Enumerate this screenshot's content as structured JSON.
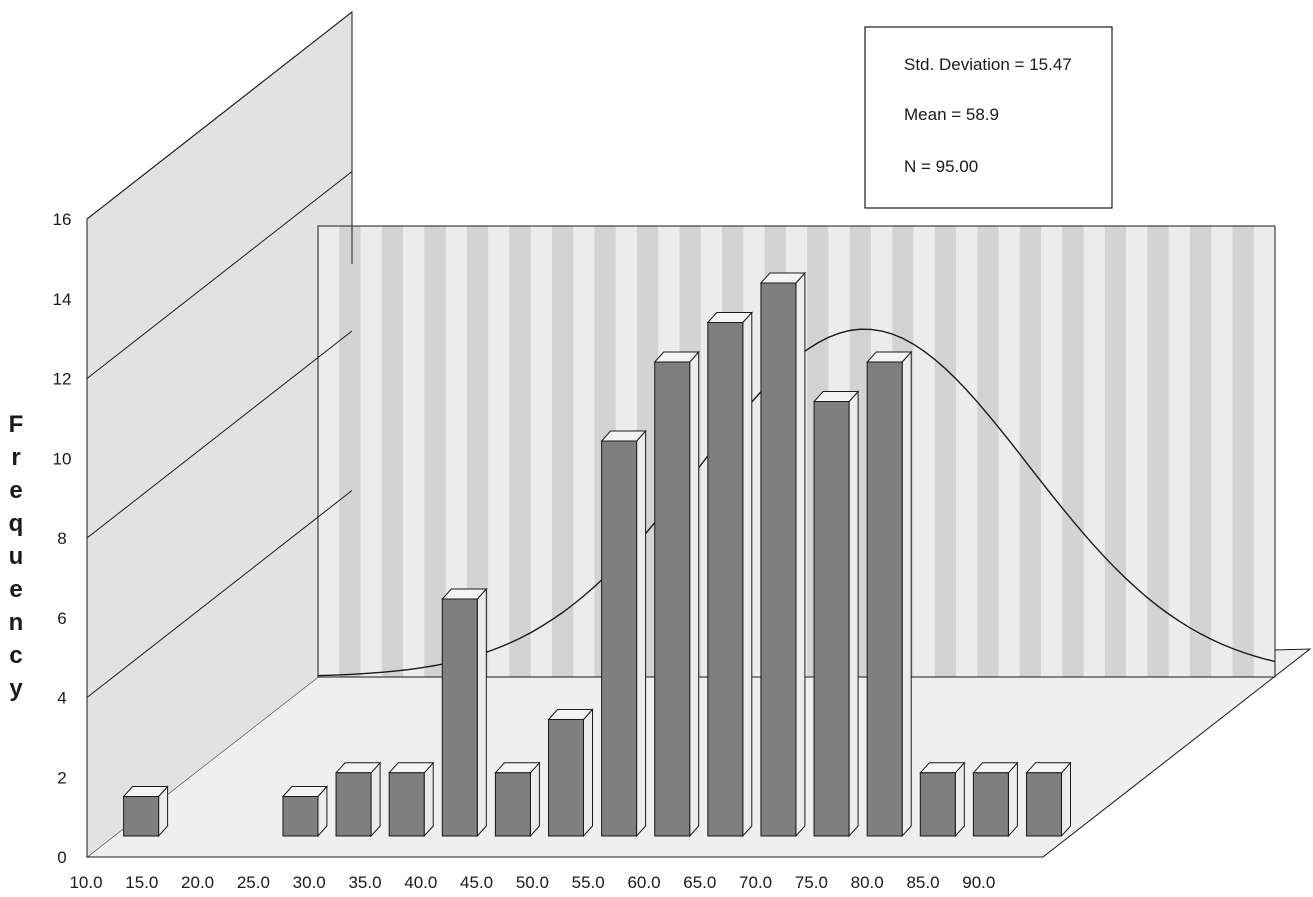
{
  "chart_data": {
    "type": "bar",
    "style": "3d-histogram-with-normal-curve",
    "title": "",
    "xlabel": "",
    "ylabel": "Frequency",
    "ylim": [
      0,
      16
    ],
    "yticks": [
      0,
      2,
      4,
      6,
      8,
      10,
      12,
      14,
      16
    ],
    "xtick_labels": [
      "10.0",
      "15.0",
      "20.0",
      "25.0",
      "30.0",
      "35.0",
      "40.0",
      "45.0",
      "50.0",
      "55.0",
      "60.0",
      "65.0",
      "70.0",
      "75.0",
      "80.0",
      "85.0",
      "90.0"
    ],
    "bars": [
      {
        "x": 12.5,
        "value": 1
      },
      {
        "x": 27.5,
        "value": 1
      },
      {
        "x": 32.5,
        "value": 1.6
      },
      {
        "x": 37.5,
        "value": 1.6
      },
      {
        "x": 42.5,
        "value": 6
      },
      {
        "x": 47.5,
        "value": 1.6
      },
      {
        "x": 52.5,
        "value": 2.95
      },
      {
        "x": 57.5,
        "value": 10
      },
      {
        "x": 62.5,
        "value": 12
      },
      {
        "x": 67.5,
        "value": 13
      },
      {
        "x": 72.5,
        "value": 14
      },
      {
        "x": 77.5,
        "value": 11
      },
      {
        "x": 82.5,
        "value": 12
      },
      {
        "x": 87.5,
        "value": 1.6
      },
      {
        "x": 92.5,
        "value": 1.6
      },
      {
        "x": 97.5,
        "value": 1.6
      }
    ],
    "normal_curve": {
      "mean": 58.9,
      "sd": 15.47,
      "n": 95.0,
      "bin_width": 5
    },
    "grid": true,
    "legend_position": "top-right"
  },
  "stats_box": {
    "std_label": "Std. Deviation = 15.47",
    "mean_label": "Mean = 58.9",
    "n_label": "N = 95.00"
  },
  "colors": {
    "bar_front": "#7f7f7f",
    "bar_side": "#ececec",
    "bar_top": "#f4f4f4",
    "floor": "#efefef",
    "left_wall": "#e2e2e2",
    "back_stripe_dark": "#d3d3d3",
    "back_stripe_light": "#ececec",
    "line": "#1a1a1a"
  }
}
